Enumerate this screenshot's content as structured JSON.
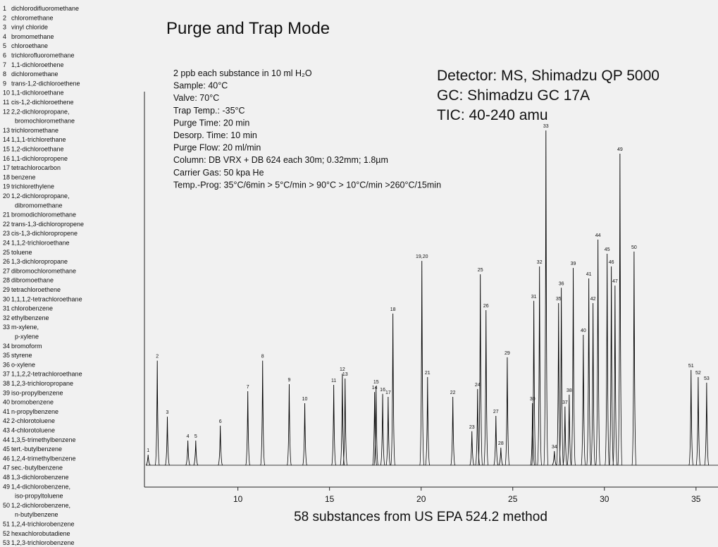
{
  "compounds": [
    {
      "no": 1,
      "lines": [
        "dichlorodifluoromethane"
      ]
    },
    {
      "no": 2,
      "lines": [
        "chloromethane"
      ]
    },
    {
      "no": 3,
      "lines": [
        "vinyl chloride"
      ]
    },
    {
      "no": 4,
      "lines": [
        "bromomethane"
      ]
    },
    {
      "no": 5,
      "lines": [
        "chloroethane"
      ]
    },
    {
      "no": 6,
      "lines": [
        "trichlorofluoromethane"
      ]
    },
    {
      "no": 7,
      "lines": [
        "1,1-dichloroethene"
      ]
    },
    {
      "no": 8,
      "lines": [
        "dichloromethane"
      ]
    },
    {
      "no": 9,
      "lines": [
        "trans-1,2-dichloroethene"
      ]
    },
    {
      "no": 10,
      "lines": [
        "1,1-dichloroethane"
      ]
    },
    {
      "no": 11,
      "lines": [
        "cis-1,2-dichloroethene"
      ]
    },
    {
      "no": 12,
      "lines": [
        "2,2-dichloropropane,",
        "bromochloromethane"
      ]
    },
    {
      "no": 13,
      "lines": [
        "trichloromethane"
      ]
    },
    {
      "no": 14,
      "lines": [
        "1,1,1-trichlorethane"
      ]
    },
    {
      "no": 15,
      "lines": [
        "1,2-dichloroethane"
      ]
    },
    {
      "no": 16,
      "lines": [
        "1,1-dichloropropene"
      ]
    },
    {
      "no": 17,
      "lines": [
        "tetrachlorocarbon"
      ]
    },
    {
      "no": 18,
      "lines": [
        "benzene"
      ]
    },
    {
      "no": 19,
      "lines": [
        "trichlorethylene"
      ]
    },
    {
      "no": 20,
      "lines": [
        "1,2-dichloropropane,",
        "dibromomethane"
      ]
    },
    {
      "no": 21,
      "lines": [
        "bromodichloromethane"
      ]
    },
    {
      "no": 22,
      "lines": [
        "trans-1,3-dichloropropene"
      ]
    },
    {
      "no": 23,
      "lines": [
        "cis-1,3-dichloropropene"
      ]
    },
    {
      "no": 24,
      "lines": [
        "1,1,2-trichloroethane"
      ]
    },
    {
      "no": 25,
      "lines": [
        "toluene"
      ]
    },
    {
      "no": 26,
      "lines": [
        "1,3-dichloropropane"
      ]
    },
    {
      "no": 27,
      "lines": [
        "dibromochloromethane"
      ]
    },
    {
      "no": 28,
      "lines": [
        "dibromoethane"
      ]
    },
    {
      "no": 29,
      "lines": [
        "tetrachloroethene"
      ]
    },
    {
      "no": 30,
      "lines": [
        "1,1,1,2-tetrachloroethane"
      ]
    },
    {
      "no": 31,
      "lines": [
        "chlorobenzene"
      ]
    },
    {
      "no": 32,
      "lines": [
        "ethylbenzene"
      ]
    },
    {
      "no": 33,
      "lines": [
        "m-xylene,",
        "p-xylene"
      ]
    },
    {
      "no": 34,
      "lines": [
        "bromoform"
      ]
    },
    {
      "no": 35,
      "lines": [
        "styrene"
      ]
    },
    {
      "no": 36,
      "lines": [
        "o-xylene"
      ]
    },
    {
      "no": 37,
      "lines": [
        "1,1,2,2-tetrachloroethane"
      ]
    },
    {
      "no": 38,
      "lines": [
        "1,2,3-trichloropropane"
      ]
    },
    {
      "no": 39,
      "lines": [
        "iso-propylbenzene"
      ]
    },
    {
      "no": 40,
      "lines": [
        "bromobenzene"
      ]
    },
    {
      "no": 41,
      "lines": [
        "n-propylbenzene"
      ]
    },
    {
      "no": 42,
      "lines": [
        "2-chlorotoluene"
      ]
    },
    {
      "no": 43,
      "lines": [
        "4-chlorotoluene"
      ]
    },
    {
      "no": 44,
      "lines": [
        "1,3,5-trimethylbenzene"
      ]
    },
    {
      "no": 45,
      "lines": [
        "tert.-butylbenzene"
      ]
    },
    {
      "no": 46,
      "lines": [
        "1,2,4-trimethylbenzene"
      ]
    },
    {
      "no": 47,
      "lines": [
        "sec.-butylbenzene"
      ]
    },
    {
      "no": 48,
      "lines": [
        "1,3-dichlorobenzene"
      ]
    },
    {
      "no": 49,
      "lines": [
        "1,4-dichlorobenzene,",
        "iso-propyltoluene"
      ]
    },
    {
      "no": 50,
      "lines": [
        "1,2-dichlorobenzene,",
        "n-butylbenzene"
      ]
    },
    {
      "no": 51,
      "lines": [
        "1,2,4-trichlorobenzene"
      ]
    },
    {
      "no": 52,
      "lines": [
        "hexachlorobutadiene"
      ]
    },
    {
      "no": 53,
      "lines": [
        "1,2,3-trichlorobenzene"
      ]
    }
  ],
  "chart_data": {
    "type": "chromatogram",
    "title": "Purge and Trap Mode",
    "conditions": [
      "2 ppb each substance in 10 ml H₂O",
      "Sample: 40°C",
      "Valve: 70°C",
      "Trap Temp.: -35°C",
      "Purge Time: 20 min",
      "Desorp. Time: 10 min",
      "Purge Flow: 20 ml/min",
      "Column: DB VRX + DB 624 each 30m; 0.32mm; 1.8µm",
      "Carrier Gas: 50 kpa He",
      "Temp.-Prog: 35°C/6min > 5°C/min > 90°C > 10°C/min >260°C/15min"
    ],
    "detector": [
      "Detector:  MS, Shimadzu QP 5000",
      "GC: Shimadzu GC 17A",
      "TIC: 40-240 amu"
    ],
    "xlabel": "58 substances from US EPA  524.2 method",
    "color": "#000000",
    "peak_labels": [
      "1",
      "2",
      "3",
      "4",
      "5",
      "6",
      "7",
      "8",
      "9",
      "10",
      "11",
      "12",
      "13",
      "14",
      "15",
      "16",
      "17",
      "18",
      "19,20",
      "21",
      "22",
      "23",
      "24",
      "25",
      "26",
      "27",
      "28",
      "29",
      "30",
      "31",
      "32",
      "33",
      "34",
      "35",
      "36",
      "37",
      "38",
      "39",
      "40",
      "41",
      "42",
      "44",
      "45",
      "46",
      "47",
      "49",
      "50",
      "51",
      "52",
      "53"
    ],
    "x": [
      5.1,
      5.6,
      6.15,
      7.27,
      7.7,
      9.04,
      10.54,
      11.35,
      12.8,
      13.65,
      15.23,
      15.7,
      15.85,
      17.46,
      17.54,
      17.9,
      18.2,
      18.46,
      20.04,
      20.35,
      21.73,
      22.77,
      23.08,
      23.23,
      23.54,
      24.08,
      24.35,
      24.7,
      26.08,
      26.15,
      26.46,
      26.81,
      27.27,
      27.5,
      27.65,
      27.85,
      28.08,
      28.3,
      28.85,
      29.15,
      29.38,
      29.65,
      30.15,
      30.38,
      30.58,
      30.85,
      31.62,
      34.73,
      35.12,
      35.58
    ],
    "values": [
      2.8,
      28,
      13,
      6.6,
      6.6,
      10.6,
      19.8,
      28,
      21.7,
      16.6,
      21.5,
      24.5,
      23.2,
      19.6,
      21.1,
      19.1,
      18.3,
      40.6,
      54.7,
      23.6,
      18.3,
      9.1,
      20.4,
      51.1,
      41.5,
      13.2,
      4.7,
      28.9,
      16.6,
      44,
      53.2,
      89.6,
      3.8,
      43.4,
      47.5,
      15.7,
      18.9,
      52.8,
      34.9,
      50,
      43.4,
      60.4,
      56.6,
      53.2,
      48.1,
      83.4,
      57.2,
      25.5,
      23.6,
      22.1
    ],
    "xlim": [
      4.9,
      36.2
    ],
    "ylim": [
      -6,
      100
    ],
    "xticks": [
      10,
      15,
      20,
      25,
      30,
      35
    ]
  }
}
